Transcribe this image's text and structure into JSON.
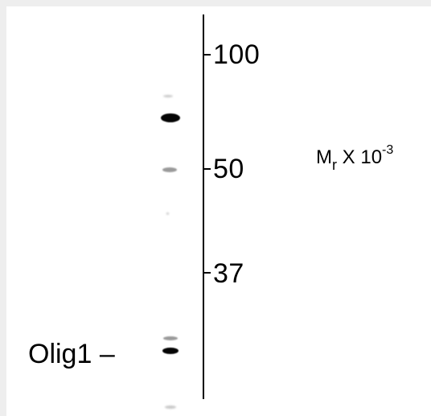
{
  "blot": {
    "markers": [
      {
        "label": "100"
      },
      {
        "label": "50"
      },
      {
        "label": "37"
      }
    ],
    "unit": {
      "base": "M",
      "subscript": "r",
      "mid": " X 10",
      "superscript": "-3"
    },
    "protein": {
      "label": "Olig1 –"
    }
  }
}
